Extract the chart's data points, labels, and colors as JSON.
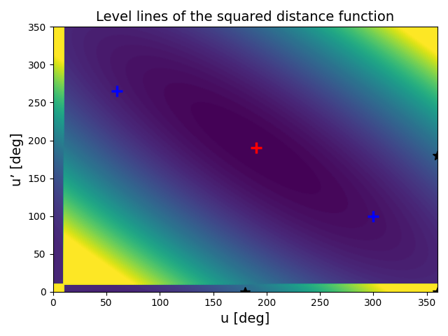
{
  "title": "Level lines of the squared distance function",
  "xlabel": "u [deg]",
  "ylabel": "u’ [deg]",
  "xlim": [
    0,
    360
  ],
  "ylim": [
    0,
    350
  ],
  "red_plus": [
    190,
    190
  ],
  "blue_plus1": [
    60,
    265
  ],
  "blue_plus2": [
    300,
    100
  ],
  "black_star1": [
    180,
    0
  ],
  "black_star2": [
    360,
    0
  ],
  "black_star3": [
    360,
    180
  ],
  "n_levels": 80,
  "cmap": "viridis",
  "u0": 190,
  "v0": 190,
  "figsize": [
    6.4,
    4.8
  ],
  "dpi": 100
}
